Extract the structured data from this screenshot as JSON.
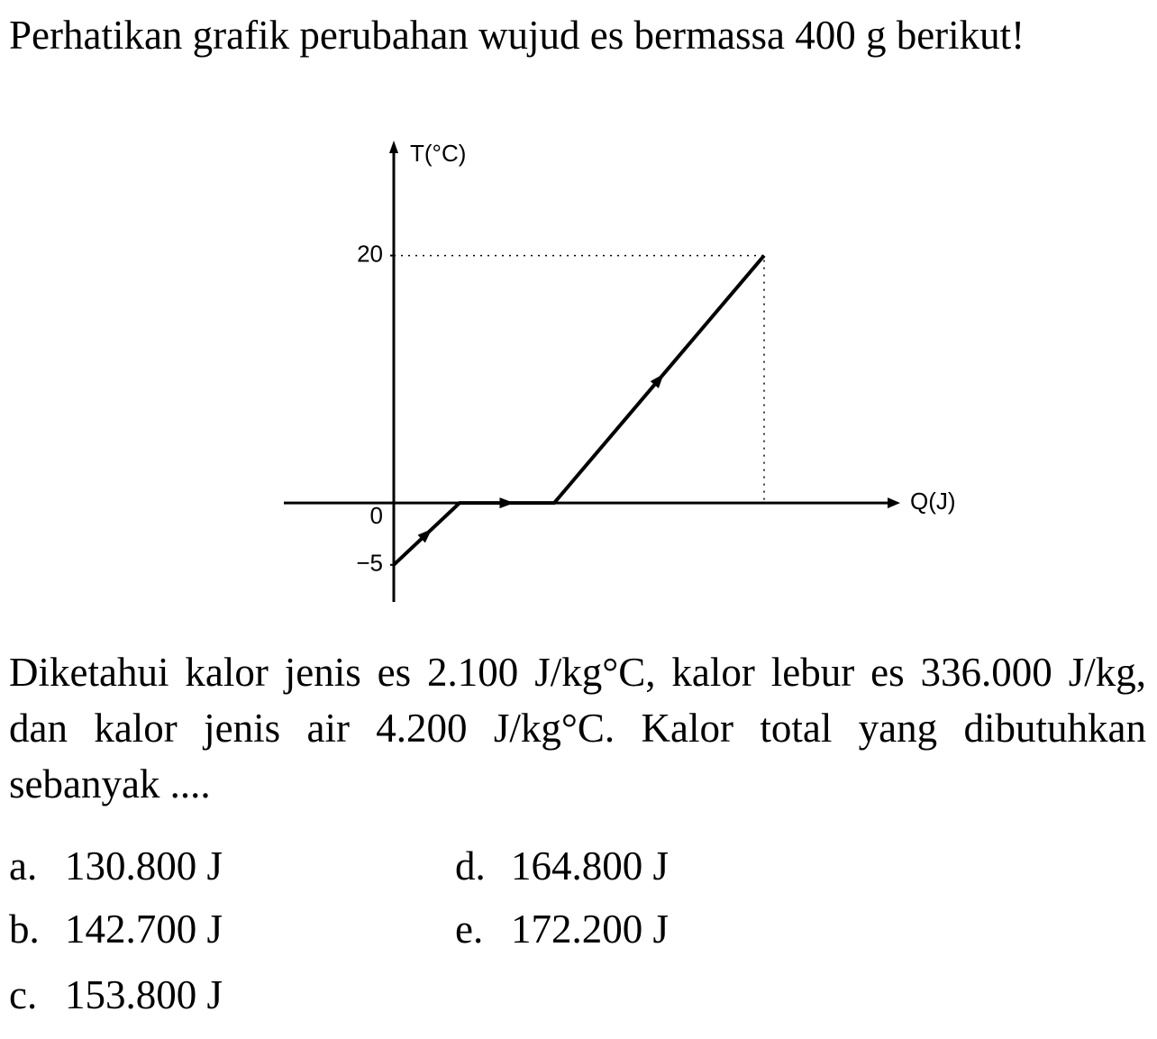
{
  "question": {
    "intro": "Perhatikan grafik perubahan wujud es bermassa 400 g berikut!",
    "given": "Diketahui kalor jenis es 2.100 J/kg°C, kalor lebur es 336.000 J/kg, dan kalor jenis air 4.200 J/kg°C. Kalor total yang dibutuhkan sebanyak ....",
    "options": [
      {
        "letter": "a.",
        "text": "130.800 J"
      },
      {
        "letter": "d.",
        "text": "164.800 J"
      },
      {
        "letter": "b.",
        "text": "142.700 J"
      },
      {
        "letter": "e.",
        "text": "172.200 J"
      },
      {
        "letter": "c.",
        "text": "153.800 J"
      }
    ]
  },
  "chart_data": {
    "type": "line",
    "ylabel": "T(°C)",
    "xlabel": "Q(J)",
    "categories": [
      null,
      null,
      null,
      null
    ],
    "values": [
      -5,
      0,
      0,
      20
    ],
    "ylim": [
      -8,
      29
    ],
    "yticks": [
      20,
      0,
      {
        "value": -5,
        "label": "−5"
      }
    ],
    "color": "#000000"
  }
}
